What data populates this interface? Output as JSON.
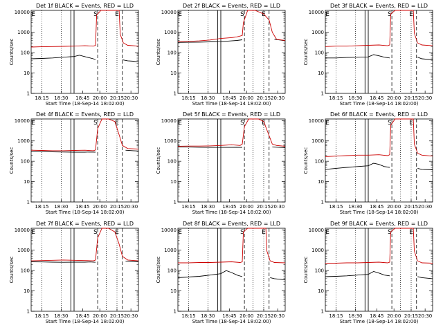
{
  "window_title": "",
  "colors": {
    "events": "#000000",
    "lld": "#cc0000",
    "background": "#ffffff"
  },
  "shared": {
    "xlabel": "Start Time (18-Sep-14 18:02:00)",
    "ylabel": "Counts/sec",
    "xticks": [
      "18:15",
      "18:30",
      "18:45",
      "20:00",
      "20:15",
      "20:30"
    ],
    "yticks": [
      "1",
      "10",
      "100",
      "1000",
      "10000"
    ],
    "ylim": [
      1,
      12000
    ],
    "yscale": "log"
  },
  "chart_data": [
    {
      "type": "line",
      "title": "Det 1f BLACK = Events, RED = LLD",
      "markers": [
        "E",
        "S",
        "E"
      ],
      "series": [
        {
          "name": "Events",
          "color": "#000000",
          "x": [
            0,
            0.1,
            0.2,
            0.3,
            0.4,
            0.45,
            0.52,
            0.55,
            0.58,
            0.6,
            0.7,
            0.83,
            0.85,
            0.9,
            0.95,
            1.0
          ],
          "y": [
            50,
            52,
            55,
            60,
            65,
            75,
            60,
            55,
            50,
            45,
            null,
            null,
            45,
            40,
            38,
            35
          ]
        },
        {
          "name": "LLD",
          "color": "#cc0000",
          "x": [
            0,
            0.1,
            0.2,
            0.3,
            0.4,
            0.5,
            0.58,
            0.6,
            0.61,
            0.65,
            0.75,
            0.82,
            0.83,
            0.86,
            0.9,
            1.0
          ],
          "y": [
            190,
            195,
            200,
            205,
            210,
            220,
            210,
            230,
            7000,
            12000,
            12000,
            12000,
            800,
            300,
            230,
            210
          ]
        }
      ]
    },
    {
      "type": "line",
      "title": "Det 2f BLACK = Events, RED = LLD",
      "markers": [
        "E",
        "S",
        "E"
      ],
      "series": [
        {
          "name": "Events",
          "color": "#000000",
          "x": [
            0,
            0.1,
            0.2,
            0.3,
            0.4,
            0.5,
            0.55,
            0.6,
            0.85,
            0.9,
            0.95,
            1.0
          ],
          "y": [
            320,
            325,
            330,
            340,
            350,
            380,
            400,
            430,
            null,
            450,
            420,
            380
          ]
        },
        {
          "name": "LLD",
          "color": "#cc0000",
          "x": [
            0,
            0.1,
            0.2,
            0.3,
            0.4,
            0.5,
            0.55,
            0.6,
            0.61,
            0.65,
            0.72,
            0.8,
            0.85,
            0.88,
            0.92,
            1.0
          ],
          "y": [
            350,
            360,
            380,
            420,
            500,
            550,
            600,
            700,
            3000,
            12000,
            12000,
            8000,
            4000,
            1000,
            450,
            400
          ]
        }
      ]
    },
    {
      "type": "line",
      "title": "Det 3f BLACK = Events, RED = LLD",
      "markers": [
        "E",
        "S",
        "E"
      ],
      "series": [
        {
          "name": "Events",
          "color": "#000000",
          "x": [
            0,
            0.1,
            0.2,
            0.3,
            0.4,
            0.45,
            0.5,
            0.55,
            0.6,
            0.83,
            0.86,
            0.9,
            1.0
          ],
          "y": [
            55,
            55,
            58,
            60,
            62,
            80,
            70,
            60,
            55,
            null,
            60,
            50,
            45
          ]
        },
        {
          "name": "LLD",
          "color": "#cc0000",
          "x": [
            0,
            0.1,
            0.2,
            0.3,
            0.4,
            0.5,
            0.58,
            0.6,
            0.61,
            0.65,
            0.75,
            0.82,
            0.83,
            0.86,
            0.9,
            1.0
          ],
          "y": [
            200,
            210,
            210,
            220,
            230,
            240,
            220,
            240,
            8000,
            12000,
            12000,
            12000,
            900,
            300,
            240,
            220
          ]
        }
      ]
    },
    {
      "type": "line",
      "title": "Det 4f BLACK = Events, RED = LLD",
      "markers": [
        "E",
        "S",
        "E"
      ],
      "series": [
        {
          "name": "Events",
          "color": "#000000",
          "x": [
            0,
            0.1,
            0.2,
            0.3,
            0.4,
            0.5,
            0.55,
            0.6,
            0.85,
            0.88,
            0.95,
            1.0
          ],
          "y": [
            300,
            300,
            290,
            285,
            280,
            280,
            285,
            280,
            null,
            350,
            330,
            320
          ]
        },
        {
          "name": "LLD",
          "color": "#cc0000",
          "x": [
            0,
            0.1,
            0.2,
            0.3,
            0.4,
            0.5,
            0.58,
            0.6,
            0.62,
            0.66,
            0.72,
            0.78,
            0.82,
            0.85,
            0.9,
            1.0
          ],
          "y": [
            350,
            340,
            330,
            330,
            340,
            350,
            330,
            360,
            4000,
            12000,
            12000,
            9000,
            2000,
            600,
            420,
            400
          ]
        }
      ]
    },
    {
      "type": "line",
      "title": "Det 5f BLACK = Events, RED = LLD",
      "markers": [
        "E",
        "S",
        "E"
      ],
      "series": [
        {
          "name": "Events",
          "color": "#000000",
          "x": [
            0,
            0.1,
            0.2,
            0.3,
            0.4,
            0.5,
            0.55,
            0.6,
            0.85,
            0.88,
            0.95,
            1.0
          ],
          "y": [
            500,
            500,
            490,
            480,
            480,
            480,
            490,
            480,
            null,
            500,
            480,
            470
          ]
        },
        {
          "name": "LLD",
          "color": "#cc0000",
          "x": [
            0,
            0.1,
            0.2,
            0.3,
            0.4,
            0.5,
            0.58,
            0.6,
            0.62,
            0.66,
            0.75,
            0.8,
            0.84,
            0.88,
            0.92,
            1.0
          ],
          "y": [
            550,
            560,
            560,
            570,
            600,
            650,
            600,
            700,
            5000,
            12000,
            12000,
            9000,
            2500,
            700,
            600,
            550
          ]
        }
      ]
    },
    {
      "type": "line",
      "title": "Det 6f BLACK = Events, RED = LLD",
      "markers": [
        "E",
        "S",
        "E"
      ],
      "series": [
        {
          "name": "Events",
          "color": "#000000",
          "x": [
            0,
            0.1,
            0.2,
            0.3,
            0.4,
            0.45,
            0.5,
            0.55,
            0.6,
            0.83,
            0.86,
            0.9,
            1.0
          ],
          "y": [
            40,
            45,
            50,
            55,
            60,
            80,
            70,
            55,
            50,
            null,
            45,
            40,
            38
          ]
        },
        {
          "name": "LLD",
          "color": "#cc0000",
          "x": [
            0,
            0.1,
            0.2,
            0.3,
            0.4,
            0.5,
            0.58,
            0.6,
            0.61,
            0.65,
            0.75,
            0.82,
            0.83,
            0.86,
            0.9,
            1.0
          ],
          "y": [
            170,
            180,
            190,
            200,
            200,
            210,
            190,
            210,
            6000,
            12000,
            12000,
            12000,
            700,
            250,
            200,
            180
          ]
        }
      ]
    },
    {
      "type": "line",
      "title": "Det 7f BLACK = Events, RED = LLD",
      "markers": [
        "E",
        "S",
        "E"
      ],
      "series": [
        {
          "name": "Events",
          "color": "#000000",
          "x": [
            0,
            0.1,
            0.2,
            0.3,
            0.4,
            0.5,
            0.55,
            0.6,
            0.85,
            0.88,
            0.95,
            1.0
          ],
          "y": [
            270,
            265,
            260,
            255,
            260,
            260,
            265,
            255,
            null,
            290,
            280,
            270
          ]
        },
        {
          "name": "LLD",
          "color": "#cc0000",
          "x": [
            0,
            0.1,
            0.2,
            0.3,
            0.4,
            0.5,
            0.58,
            0.6,
            0.62,
            0.66,
            0.72,
            0.78,
            0.82,
            0.85,
            0.9,
            1.0
          ],
          "y": [
            300,
            310,
            320,
            330,
            320,
            310,
            300,
            330,
            4000,
            12000,
            12000,
            8000,
            2000,
            500,
            330,
            300
          ]
        }
      ]
    },
    {
      "type": "line",
      "title": "Det 8f BLACK = Events, RED = LLD",
      "markers": [
        "E",
        "S",
        "E"
      ],
      "series": [
        {
          "name": "Events",
          "color": "#000000",
          "x": [
            0,
            0.1,
            0.2,
            0.3,
            0.4,
            0.45,
            0.5,
            0.55,
            0.6,
            0.83,
            0.86,
            0.9,
            1.0
          ],
          "y": [
            45,
            48,
            52,
            60,
            70,
            100,
            80,
            60,
            50,
            null,
            45,
            40,
            35
          ]
        },
        {
          "name": "LLD",
          "color": "#cc0000",
          "x": [
            0,
            0.1,
            0.2,
            0.3,
            0.4,
            0.5,
            0.58,
            0.6,
            0.61,
            0.65,
            0.75,
            0.82,
            0.83,
            0.86,
            0.9,
            1.0
          ],
          "y": [
            240,
            240,
            250,
            250,
            260,
            270,
            250,
            270,
            8000,
            12000,
            12000,
            12000,
            900,
            300,
            250,
            240
          ]
        }
      ]
    },
    {
      "type": "line",
      "title": "Det 9f BLACK = Events, RED = LLD",
      "markers": [
        "E",
        "S",
        "E"
      ],
      "series": [
        {
          "name": "Events",
          "color": "#000000",
          "x": [
            0,
            0.1,
            0.2,
            0.3,
            0.4,
            0.45,
            0.5,
            0.55,
            0.6,
            0.83,
            0.86,
            0.9,
            1.0
          ],
          "y": [
            50,
            52,
            55,
            60,
            65,
            90,
            75,
            60,
            55,
            null,
            50,
            45,
            40
          ]
        },
        {
          "name": "LLD",
          "color": "#cc0000",
          "x": [
            0,
            0.1,
            0.2,
            0.3,
            0.4,
            0.5,
            0.58,
            0.6,
            0.61,
            0.65,
            0.75,
            0.82,
            0.83,
            0.86,
            0.9,
            1.0
          ],
          "y": [
            230,
            230,
            240,
            240,
            250,
            260,
            240,
            260,
            8000,
            12000,
            12000,
            12000,
            900,
            300,
            240,
            230
          ]
        }
      ]
    }
  ]
}
